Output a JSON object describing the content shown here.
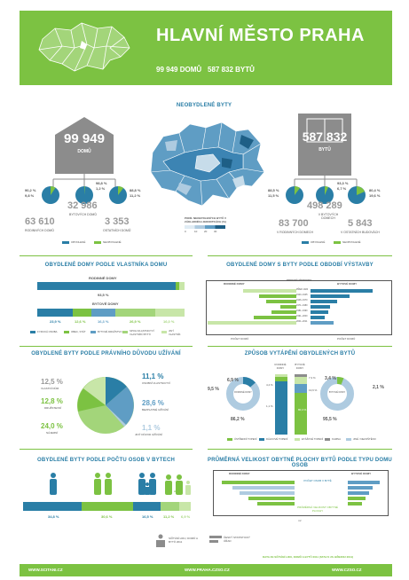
{
  "header": {
    "title": "HLAVNÍ MĚSTO PRAHA",
    "houses_total": "99 949 DOMŮ",
    "flats_total": "587 832 BYTŮ"
  },
  "map_title": "NEOBYDLENÉ BYTY",
  "map_legend": "PODÍL NEOBYDLENÝCH BYTŮ V ZÁKLADNÍCH JEDNOTKÁCH (%)",
  "map_legend_ticks": [
    "0",
    "10",
    "20",
    "30"
  ],
  "houses": {
    "number": "99 949",
    "label": "DOMŮ",
    "family_number": "63 610",
    "family_label": "RODINNÝCH DOMŮ",
    "apartment_number": "32 986",
    "apartment_label": "BYTOVÝCH DOMŮ",
    "other_number": "3 353",
    "other_label": "OSTATNÍCH DOMŮ",
    "family_pct_a": "90,2 %",
    "family_pct_b": "9,8 %",
    "apartment_pct_a": "98,8 %",
    "apartment_pct_b": "1,2 %",
    "other_pct_a": "88,8 %",
    "other_pct_b": "11,2 %"
  },
  "flats": {
    "number": "587 832",
    "label": "BYTŮ",
    "family_number": "83 700",
    "family_label": "V RODINNÝCH DOMECH",
    "apartment_number": "498 289",
    "apartment_label": "V BYTOVÝCH DOMECH",
    "other_number": "5 843",
    "other_label": "V OSTATNÍCH BUDOVÁCH",
    "family_pct_a": "88,5 %",
    "family_pct_b": "11,5 %",
    "apartment_pct_a": "93,3 %",
    "apartment_pct_b": "6,7 %",
    "other_pct_a": "80,4 %",
    "other_pct_b": "19,6 %"
  },
  "legend_small": {
    "a": "OBYDLENÉ",
    "b": "NEOBYDLENÉ"
  },
  "colors": {
    "green": "#7cc242",
    "blue": "#2a7ea6",
    "gray": "#9a9a9a"
  },
  "ownership": {
    "title": "OBYDLENÉ DOMY PODLE VLASTNÍKA DOMU",
    "family_label": "RODINNÉ DOMY",
    "family_pct": "93,5 %",
    "apartment_label": "BYTOVÉ DOMY",
    "apartment_pcts": [
      "23,9 %",
      "12,6 %",
      "16,3 %",
      "26,9 %",
      "16,0 %"
    ],
    "legend": [
      "FYZICKÁ OSOBA",
      "OBEC, STÁT",
      "BYTOVÉ DRUŽSTVO",
      "SPOLUVLASTNICTVÍ VLASTNÍKŮ BYTŮ",
      "JINÝ VLASTNÍK"
    ]
  },
  "period": {
    "title": "OBYDLENÉ DOMY S BYTY PODLE OBDOBÍ VÝSTAVBY",
    "col_left": "RODINNÉ DOMY",
    "col_mid": "OBDOBÍ VÝSTAVBY",
    "col_right": "BYTOVÉ DOMY",
    "periods": [
      "PŘED 1920",
      "1920–1945",
      "1946–1970",
      "1971–1980",
      "1981–1990",
      "1991–2000",
      "2001–2011"
    ],
    "axis_left": "POČET DOMŮ",
    "axis_right": "POČET DOMŮ"
  },
  "legal": {
    "title": "OBYDLENÉ BYTY PODLE PRÁVNÍHO DŮVODU UŽÍVÁNÍ",
    "pct_tl": "12,5 %",
    "label_tl": "VLASTNÍ DŮM",
    "pct_ml": "12,8 %",
    "label_ml": "DRUŽSTEVNÍ",
    "pct_bl": "24,0 %",
    "label_bl": "NÁJEMNÍ",
    "pct_tr": "11,1 %",
    "label_tr": "OSOBNÍ VLASTNICTVÍ",
    "pct_mr": "28,6 %",
    "label_mr": "BEZPLATNÉ UŽÍVÁNÍ",
    "pct_br": "1,1 %",
    "label_br": "JINÝ DŮVOD UŽÍVÁNÍ"
  },
  "heating": {
    "title": "ZPŮSOB VYTÁPĚNÍ OBYDLENÝCH BYTŮ",
    "left_pct_a": "9,5 %",
    "left_pct_b": "6,9 %",
    "left_pct_c": "86,2 %",
    "left_label": "RODINNÉ DOMY",
    "right_pct_a": "3,4 %",
    "right_pct_b": "2,1 %",
    "right_pct_c": "95,5 %",
    "right_label": "BYTOVÉ DOMY",
    "bar_pcts": [
      "4,4 %",
      "7,3 %",
      "13,6 %",
      "80,4 %",
      "1,1 %"
    ],
    "col_a": "RODINNÉ DOMY",
    "col_b": "BYTOVÉ DOMY",
    "legend": [
      "ÚSTŘEDNÍ TOPENÍ",
      "DÁLKOVÉ TOPENÍ",
      "ETÁŽOVÉ TOPENÍ",
      "KAMNA",
      "JINÉ / NEZJIŠTĚNO"
    ]
  },
  "persons": {
    "title": "OBYDLENÉ BYTY PODLE POČTU OSOB V BYTECH",
    "pcts": [
      "34,8 %",
      "30,6 %",
      "16,5 %",
      "11,2 %",
      "6,9 %"
    ],
    "more_label": "A VÍCE"
  },
  "area": {
    "title": "PRŮMĚRNÁ VELIKOST OBYTNÉ PLOCHY BYTŮ PODLE TYPU DOMU OSOB",
    "col_left": "RODINNÉ DOMY",
    "col_right": "BYTOVÉ DOMY",
    "note1": "POČET OSOB V BYTĚ",
    "note2": "PRŮMĚRNÁ VELIKOST OBYTNÉ PLOCHY",
    "axis": "m²"
  },
  "logo_left": "SČÍTÁNÍ LIDU, DOMŮ A BYTŮ 2011",
  "logo_right": "ČESKÝ STATISTICKÝ ÚŘAD",
  "source": "DATA ZE SČÍTÁNÍ LIDU, DOMŮ A BYTŮ 2011 (STAV K 26. BŘEZNU 2011)",
  "footer": {
    "link1": "WWW.SCITANI.CZ",
    "link2": "WWW.PRAHA.CZSO.CZ",
    "link3": "WWW.CZSO.CZ"
  }
}
